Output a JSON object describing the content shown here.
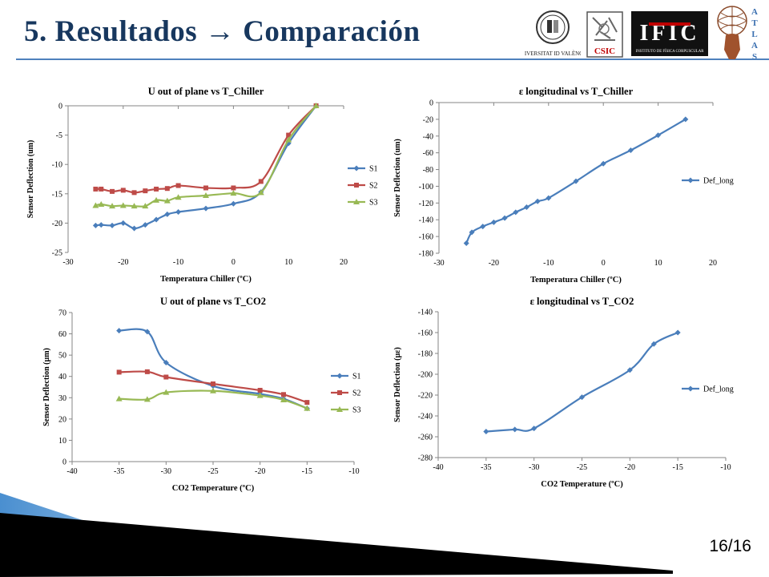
{
  "slide": {
    "title": "5. Resultados → Comparación",
    "page_number": "16/16"
  },
  "logos": {
    "uv": {
      "text": "VNIVERSITAT ID VALÈNCIA"
    },
    "csic": {
      "text": "CSIC"
    },
    "ific": {
      "text": "IFIC",
      "subtitle": "INSTITUTO DE FÍSICA CORPUSCULAR"
    },
    "atlas": {
      "text": "ATLAS"
    }
  },
  "colors": {
    "title": "#17375e",
    "rule": "#4f81bd",
    "s1": "#4a7ebb",
    "s2": "#be4b48",
    "s3": "#98b954"
  },
  "chart_data": [
    {
      "id": "chart1",
      "type": "line",
      "title": "U out of plane vs T_Chiller",
      "xlabel": "Temperatura Chiller (ºC)",
      "ylabel": "Sensor Deflection (um)",
      "xlim": [
        -30,
        20
      ],
      "ylim": [
        -25,
        0
      ],
      "xticks": [
        -30,
        -20,
        -10,
        0,
        10,
        20
      ],
      "yticks": [
        0,
        -5,
        -10,
        -15,
        -20,
        -25
      ],
      "legend": "right",
      "series": [
        {
          "name": "S1",
          "marker": "diamond",
          "color": "#4a7ebb",
          "x": [
            -25,
            -24,
            -22,
            -20,
            -18,
            -16,
            -14,
            -12,
            -10,
            -5,
            0,
            5,
            10,
            15
          ],
          "y": [
            -20.4,
            -20.3,
            -20.4,
            -20.0,
            -20.9,
            -20.3,
            -19.4,
            -18.5,
            -18.1,
            -17.5,
            -16.7,
            -14.7,
            -6.4,
            0
          ]
        },
        {
          "name": "S2",
          "marker": "square",
          "color": "#be4b48",
          "x": [
            -25,
            -24,
            -22,
            -20,
            -18,
            -16,
            -14,
            -12,
            -10,
            -5,
            0,
            5,
            10,
            15
          ],
          "y": [
            -14.2,
            -14.2,
            -14.6,
            -14.4,
            -14.8,
            -14.5,
            -14.2,
            -14.1,
            -13.6,
            -14.0,
            -14.0,
            -12.9,
            -5.0,
            0
          ]
        },
        {
          "name": "S3",
          "marker": "triangle",
          "color": "#98b954",
          "x": [
            -25,
            -24,
            -22,
            -20,
            -18,
            -16,
            -14,
            -12,
            -10,
            -5,
            0,
            5,
            10,
            15
          ],
          "y": [
            -17.0,
            -16.8,
            -17.1,
            -17.0,
            -17.1,
            -17.1,
            -16.1,
            -16.2,
            -15.6,
            -15.3,
            -14.9,
            -14.8,
            -5.8,
            0
          ]
        }
      ]
    },
    {
      "id": "chart2",
      "type": "line",
      "title": "ε longitudinal vs T_Chiller",
      "xlabel": "Temperatura Chiller (ºC)",
      "ylabel": "Sensor Deflection (um)",
      "xlim": [
        -30,
        20
      ],
      "ylim": [
        -180,
        0
      ],
      "xticks": [
        -30,
        -20,
        -10,
        0,
        10,
        20
      ],
      "yticks": [
        0,
        -20,
        -40,
        -60,
        -80,
        -100,
        -120,
        -140,
        -160,
        -180
      ],
      "legend": "right",
      "series": [
        {
          "name": "Def_long",
          "marker": "diamond",
          "color": "#4a7ebb",
          "x": [
            -25,
            -24,
            -22,
            -20,
            -18,
            -16,
            -14,
            -12,
            -10,
            -5,
            0,
            5,
            10,
            15
          ],
          "y": [
            -168,
            -155,
            -148,
            -143,
            -138,
            -131,
            -125,
            -118,
            -114,
            -94,
            -73,
            -57,
            -39,
            -20
          ]
        }
      ]
    },
    {
      "id": "chart3",
      "type": "line",
      "title": "U out of plane vs T_CO2",
      "xlabel": "CO2 Temperature (ºC)",
      "ylabel": "Sensor Deflection (µm)",
      "xlim": [
        -40,
        -10
      ],
      "ylim": [
        0,
        70
      ],
      "xticks": [
        -40,
        -35,
        -30,
        -25,
        -20,
        -15,
        -10
      ],
      "yticks": [
        70,
        60,
        50,
        40,
        30,
        20,
        10,
        0
      ],
      "legend": "right",
      "series": [
        {
          "name": "S1",
          "marker": "diamond",
          "color": "#4a7ebb",
          "x": [
            -35,
            -32,
            -30,
            -25,
            -20,
            -17.5,
            -15
          ],
          "y": [
            61.5,
            61.0,
            46.5,
            35.5,
            31.8,
            29.5,
            25.0
          ]
        },
        {
          "name": "S2",
          "marker": "square",
          "color": "#be4b48",
          "x": [
            -35,
            -32,
            -30,
            -25,
            -20,
            -17.5,
            -15
          ],
          "y": [
            42.0,
            42.2,
            39.7,
            36.5,
            33.5,
            31.5,
            27.8
          ]
        },
        {
          "name": "S3",
          "marker": "triangle",
          "color": "#98b954",
          "x": [
            -35,
            -32,
            -30,
            -25,
            -20,
            -17.5,
            -15
          ],
          "y": [
            29.5,
            29.2,
            32.5,
            33.2,
            31.0,
            29.0,
            25.0
          ]
        }
      ]
    },
    {
      "id": "chart4",
      "type": "line",
      "title": "ε longitudinal vs T_CO2",
      "xlabel": "CO2 Temperature (ºC)",
      "ylabel": "Sensor Deflection (µε)",
      "xlim": [
        -40,
        -10
      ],
      "ylim": [
        -280,
        -140
      ],
      "xticks": [
        -40,
        -35,
        -30,
        -25,
        -20,
        -15,
        -10
      ],
      "yticks": [
        -140,
        -160,
        -180,
        -200,
        -220,
        -240,
        -260,
        -280
      ],
      "legend": "right",
      "series": [
        {
          "name": "Def_long",
          "marker": "diamond",
          "color": "#4a7ebb",
          "x": [
            -35,
            -32,
            -30,
            -25,
            -20,
            -17.5,
            -15
          ],
          "y": [
            -255,
            -253,
            -252,
            -222,
            -196,
            -171,
            -160
          ]
        }
      ]
    }
  ]
}
